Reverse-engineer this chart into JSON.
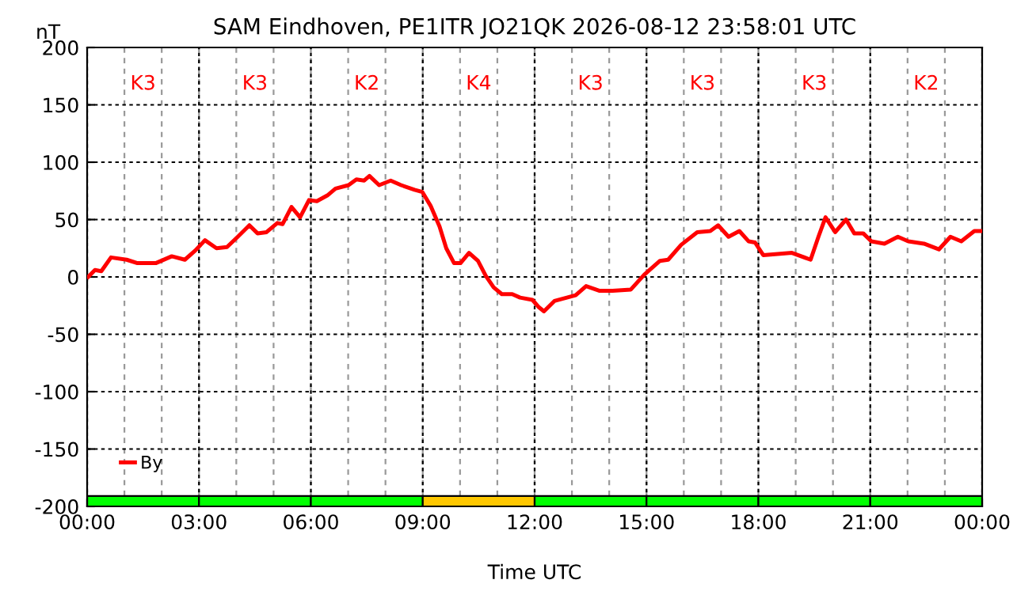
{
  "chart_data": {
    "type": "line",
    "title": "SAM Eindhoven, PE1ITR JO21QK 2026-08-12 23:58:01 UTC",
    "xlabel": "Time UTC",
    "ylabel": "nT",
    "series": [
      {
        "name": "By",
        "color": "#ff0000",
        "x": [
          0.03,
          0.21,
          0.38,
          0.64,
          1.06,
          1.35,
          1.84,
          2.27,
          2.62,
          2.9,
          3.16,
          3.47,
          3.75,
          4.04,
          4.35,
          4.57,
          4.81,
          5.1,
          5.24,
          5.48,
          5.71,
          5.95,
          6.16,
          6.44,
          6.66,
          7.01,
          7.22,
          7.43,
          7.57,
          7.83,
          8.14,
          8.42,
          8.78,
          8.99,
          9.21,
          9.45,
          9.63,
          9.84,
          10.01,
          10.24,
          10.48,
          10.69,
          10.9,
          11.12,
          11.4,
          11.61,
          11.94,
          12.1,
          12.25,
          12.53,
          13.1,
          13.38,
          13.73,
          14.09,
          14.58,
          14.94,
          15.36,
          15.58,
          15.93,
          16.36,
          16.71,
          16.92,
          17.2,
          17.49,
          17.74,
          17.91,
          18.13,
          18.9,
          19.4,
          19.61,
          19.8,
          20.06,
          20.35,
          20.57,
          20.81,
          21.03,
          21.38,
          21.74,
          22.02,
          22.44,
          22.84,
          23.15,
          23.44,
          23.79,
          24
        ],
        "values": [
          0,
          6,
          5,
          17,
          15,
          12,
          12,
          18,
          15,
          23,
          32,
          25,
          26,
          35,
          45,
          38,
          39,
          47,
          46,
          61,
          52,
          67,
          66,
          71,
          77,
          80,
          85,
          84,
          88,
          80,
          84,
          80,
          76,
          74,
          62,
          44,
          25,
          12,
          12,
          21,
          14,
          1,
          -9,
          -15,
          -15,
          -18,
          -20,
          -26,
          -30,
          -21,
          -16,
          -8,
          -12,
          -12,
          -11,
          2,
          14,
          15,
          28,
          39,
          40,
          45,
          35,
          40,
          31,
          30,
          19,
          21,
          15,
          35,
          52,
          39,
          50,
          38,
          38,
          31,
          29,
          35,
          31,
          29,
          24,
          35,
          31,
          40,
          40
        ]
      },
      {
        "type": "bar",
        "base": [
          -200,
          -200,
          -200,
          -200,
          -200,
          -200,
          -200,
          -200
        ],
        "x": [
          1.5,
          4.5,
          7.5,
          10.5,
          13.5,
          16.5,
          19.5,
          22.5
        ],
        "values": [
          9,
          9,
          9,
          9,
          9,
          9,
          9,
          9
        ],
        "colors": [
          "#00ff00",
          "#00ff00",
          "#00ff00",
          "#ffc800",
          "#00ff00",
          "#00ff00",
          "#00ff00",
          "#00ff00"
        ]
      }
    ],
    "xlim": [
      0,
      24
    ],
    "xticks": [
      {
        "value": 0,
        "label": "00:00"
      },
      {
        "value": 3,
        "label": "03:00"
      },
      {
        "value": 6,
        "label": "06:00"
      },
      {
        "value": 9,
        "label": "09:00"
      },
      {
        "value": 12,
        "label": "12:00"
      },
      {
        "value": 15,
        "label": "15:00"
      },
      {
        "value": 18,
        "label": "18:00"
      },
      {
        "value": 21,
        "label": "21:00"
      },
      {
        "value": 24,
        "label": "00:00"
      }
    ],
    "ylim": [
      -200,
      200
    ],
    "yticks": [
      -200,
      -150,
      -100,
      -50,
      0,
      50,
      100,
      150,
      200
    ],
    "annotations": [
      "K3",
      "K3",
      "K2",
      "K4",
      "K3",
      "K3",
      "K3",
      "K2"
    ],
    "grid": true,
    "legend": "bottom left",
    "line_style": "solid",
    "marker": "none"
  }
}
